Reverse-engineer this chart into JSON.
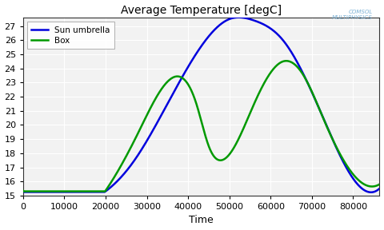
{
  "title": "Average Temperature [degC]",
  "xlabel": "Time",
  "xlim": [
    0,
    86400
  ],
  "ylim": [
    15,
    27.6
  ],
  "yticks": [
    15,
    16,
    17,
    18,
    19,
    20,
    21,
    22,
    23,
    24,
    25,
    26,
    27
  ],
  "xticks": [
    0,
    10000,
    20000,
    30000,
    40000,
    50000,
    60000,
    70000,
    80000
  ],
  "blue_color": "#0000dd",
  "green_color": "#009900",
  "plot_bg_color": "#f2f2f2",
  "fig_bg_color": "#ffffff",
  "grid_color": "#ffffff",
  "legend_labels": [
    "Sun umbrella",
    "Box"
  ],
  "title_fontsize": 10,
  "tick_fontsize": 8,
  "label_fontsize": 9,
  "comsol_color": "#7ab0d4",
  "blue_keypoints_t": [
    0,
    20000,
    27000,
    35000,
    43000,
    50000,
    56000,
    63000,
    72000,
    80000,
    86400
  ],
  "blue_keypoints_y": [
    15.3,
    15.3,
    17.5,
    21.5,
    25.5,
    27.5,
    27.4,
    26.0,
    21.0,
    16.2,
    15.5
  ],
  "green_keypoints_t": [
    0,
    20000,
    28000,
    35500,
    42000,
    45000,
    48000,
    56000,
    63000,
    68000,
    73000,
    80000,
    86400
  ],
  "green_keypoints_y": [
    15.35,
    15.35,
    19.5,
    23.2,
    21.5,
    18.5,
    17.5,
    21.5,
    24.5,
    23.5,
    20.3,
    16.5,
    15.8
  ]
}
